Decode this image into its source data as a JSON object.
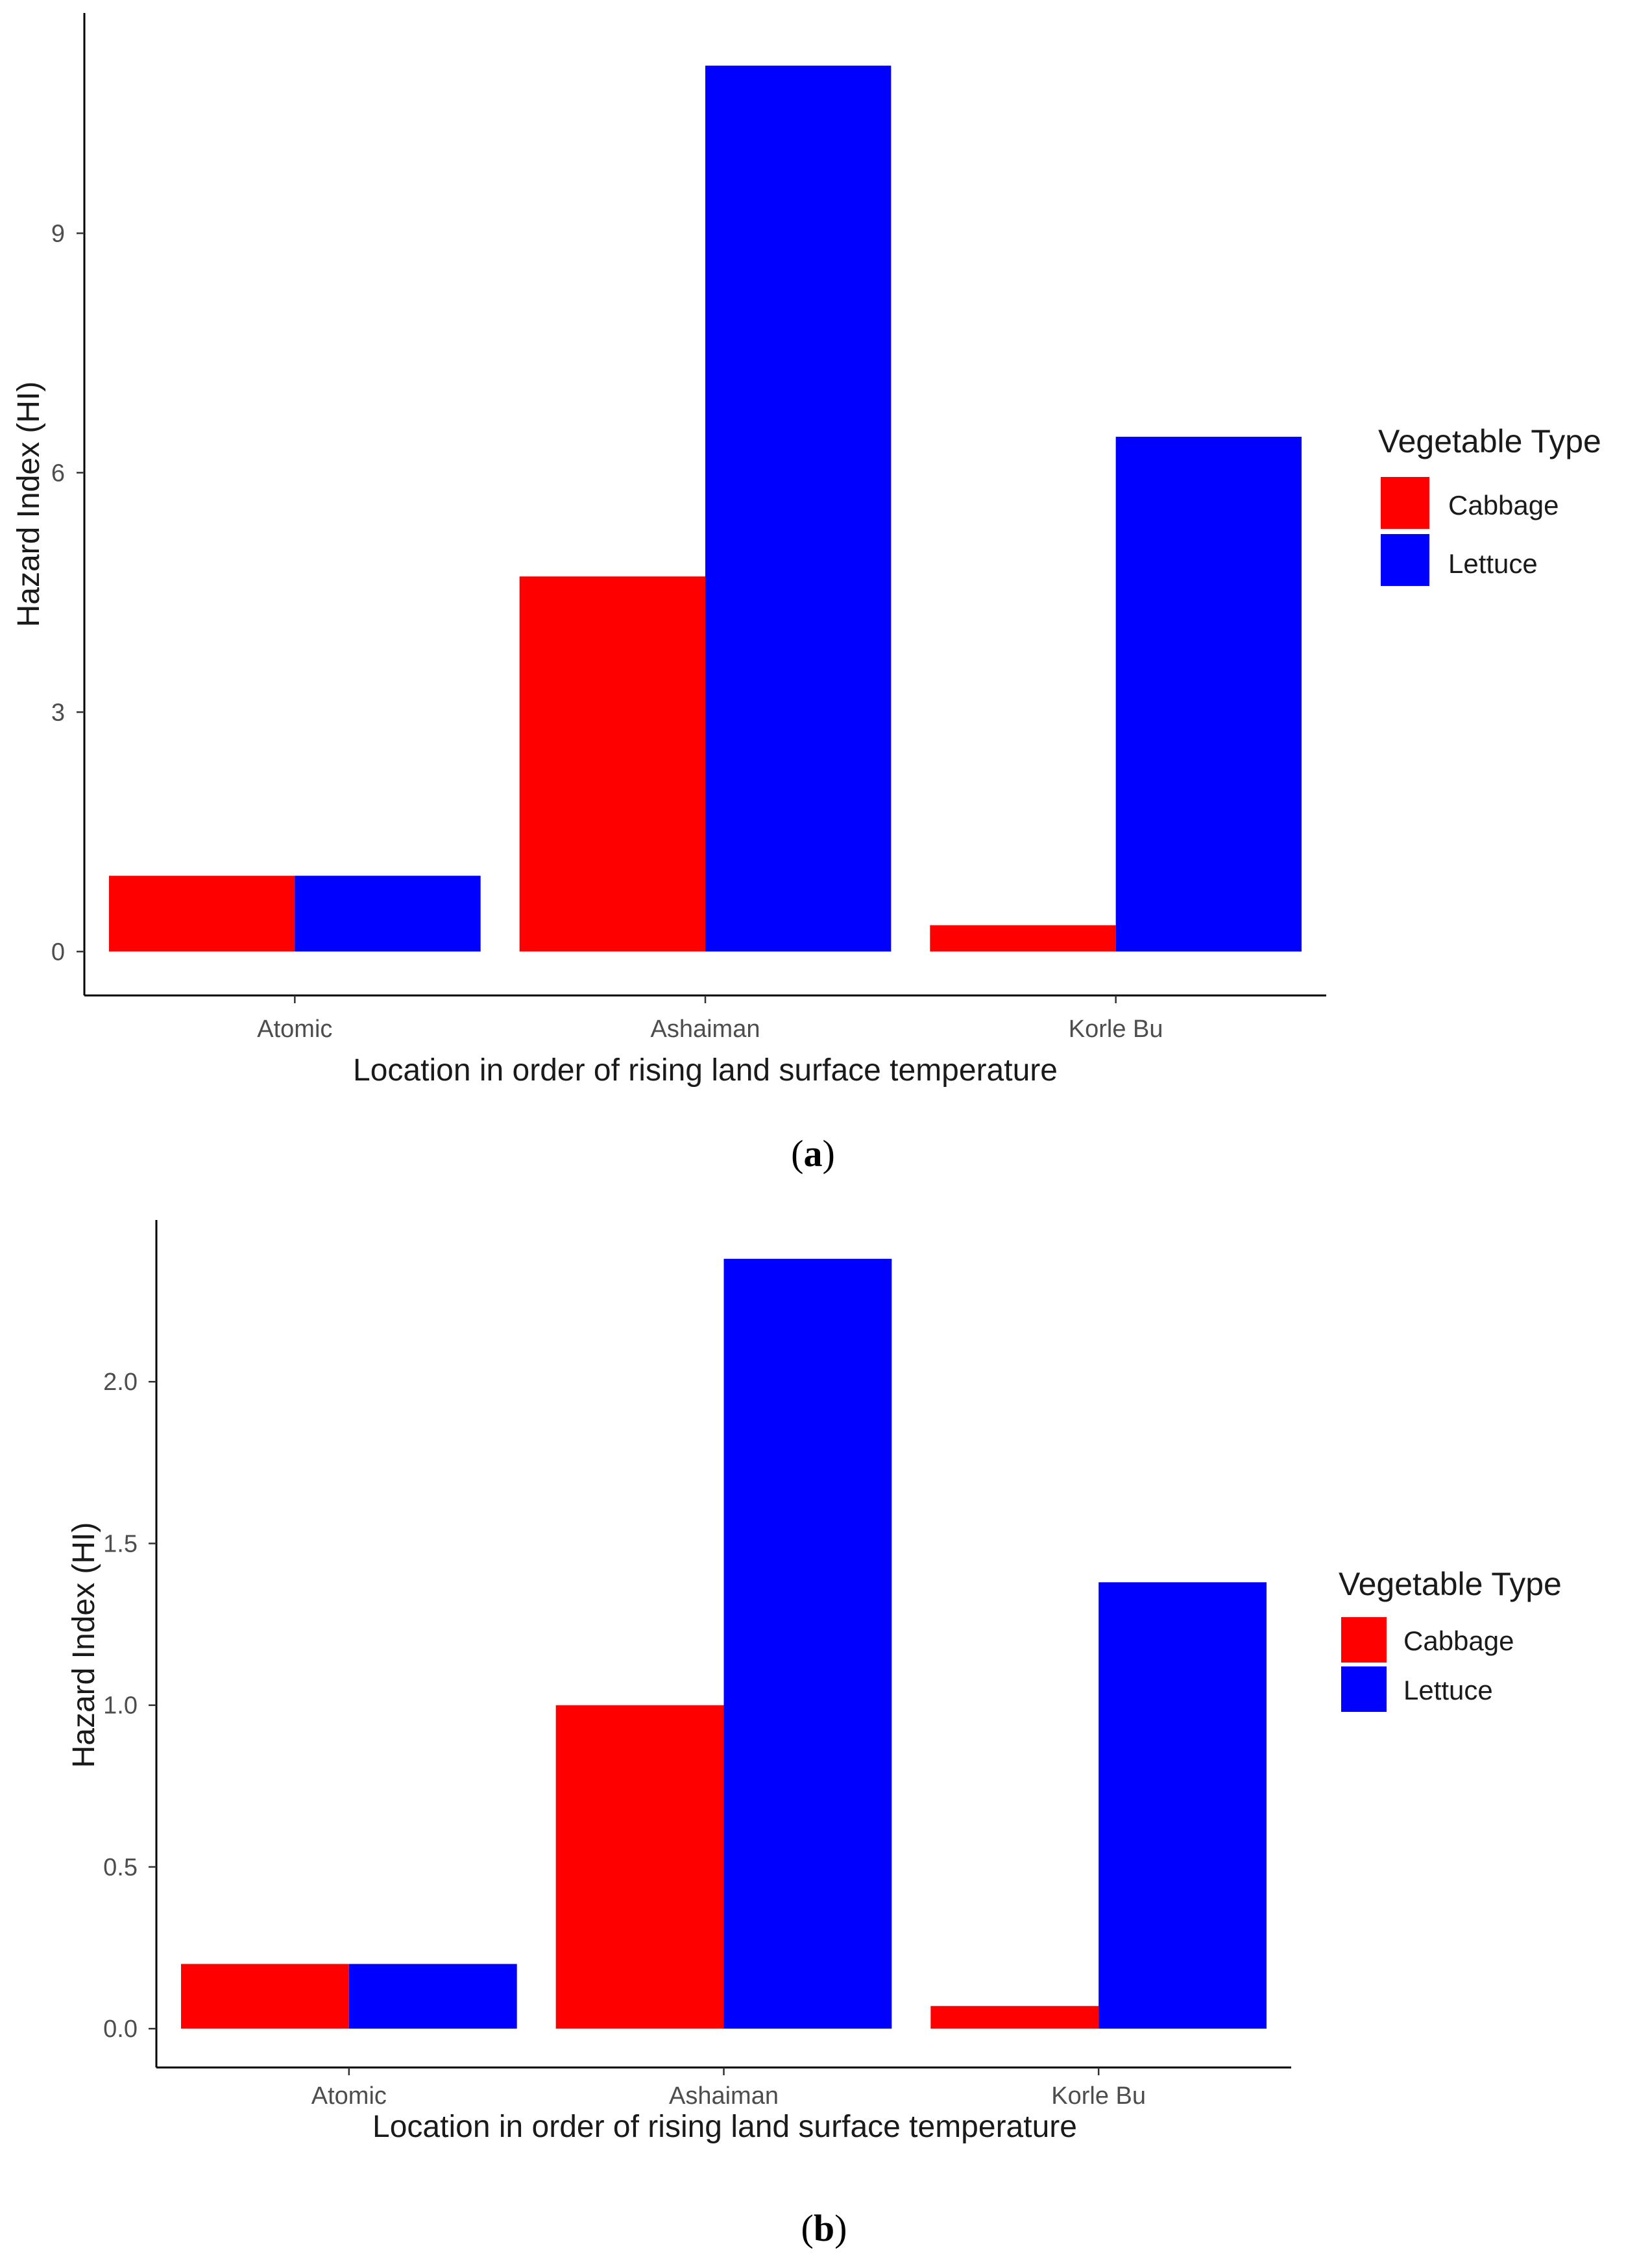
{
  "chart_data": [
    {
      "type": "bar",
      "caption_letter": "a",
      "categories": [
        "Atomic",
        "Ashaiman",
        "Korle Bu"
      ],
      "series": [
        {
          "name": "Cabbage",
          "values": [
            0.95,
            4.7,
            0.33
          ]
        },
        {
          "name": "Lettuce",
          "values": [
            0.95,
            11.1,
            6.45
          ]
        }
      ],
      "xlabel": "Location in order of rising land surface temperature",
      "ylabel": "Hazard Index (HI)",
      "yticks": [
        0,
        3,
        6,
        9
      ],
      "ytick_labels": [
        "0",
        "3",
        "6",
        "9"
      ],
      "ylim": [
        -0.55,
        11.76
      ],
      "legend": {
        "title": "Vegetable Type",
        "position": "right"
      }
    },
    {
      "type": "bar",
      "caption_letter": "b",
      "categories": [
        "Atomic",
        "Ashaiman",
        "Korle Bu"
      ],
      "series": [
        {
          "name": "Cabbage",
          "values": [
            0.2,
            1.0,
            0.07
          ]
        },
        {
          "name": "Lettuce",
          "values": [
            0.2,
            2.38,
            1.38
          ]
        }
      ],
      "xlabel": "Location in order of rising land surface temperature",
      "ylabel": "Hazard Index (HI)",
      "yticks": [
        0,
        0.5,
        1.0,
        1.5,
        2.0
      ],
      "ytick_labels": [
        "0.0",
        "0.5",
        "1.0",
        "1.5",
        "2.0"
      ],
      "ylim": [
        -0.12,
        2.5
      ],
      "legend": {
        "title": "Vegetable Type",
        "position": "right"
      }
    }
  ],
  "colors": {
    "Cabbage": "#ff0000",
    "Lettuce": "#0000ff",
    "axis": "#000000"
  }
}
